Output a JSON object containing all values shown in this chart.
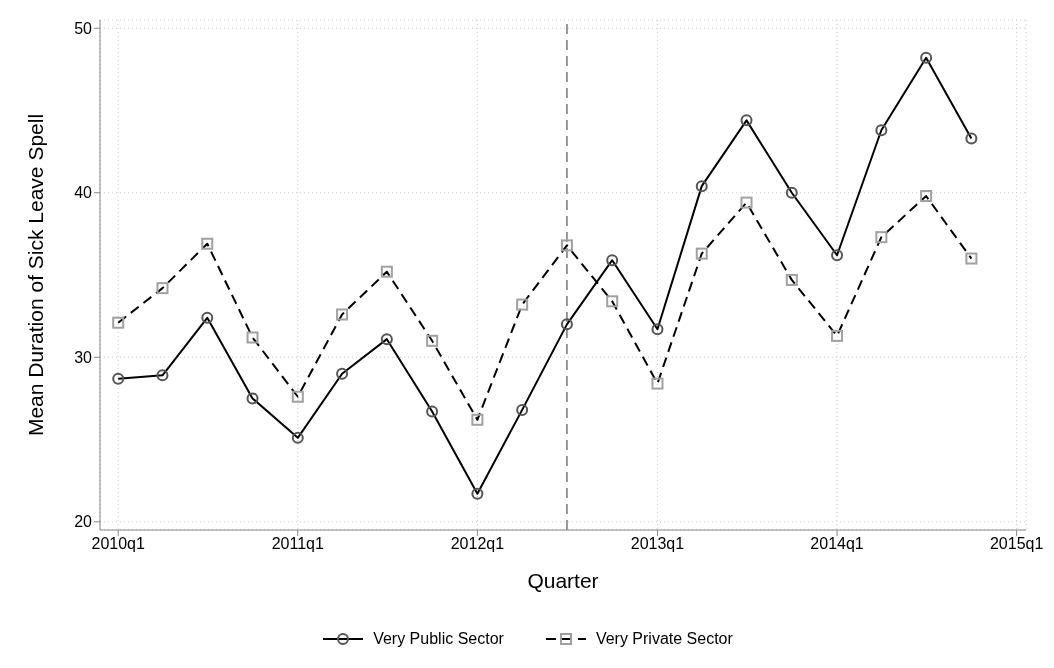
{
  "chart_data": {
    "type": "line",
    "xlabel": "Quarter",
    "ylabel": "Mean Duration of Sick Leave Spell",
    "x": [
      "2010-01",
      "2010-04",
      "2010-07",
      "2010-10",
      "2011-01",
      "2011-04",
      "2011-07",
      "2011-10",
      "2012-01",
      "2012-04",
      "2012-07",
      "2012-10",
      "2013-01",
      "2013-04",
      "2013-07",
      "2013-10",
      "2014-01",
      "2014-04",
      "2014-07",
      "2014-10"
    ],
    "series": [
      {
        "name": "Very Public Sector",
        "color": "#000000",
        "marker": "circle",
        "line_style": "solid",
        "values": [
          28.7,
          28.9,
          32.4,
          27.5,
          25.1,
          29.0,
          31.1,
          26.7,
          21.7,
          26.8,
          32.0,
          35.9,
          31.7,
          40.4,
          44.4,
          40.0,
          36.2,
          43.8,
          48.2,
          43.3
        ]
      },
      {
        "name": "Very Private Sector",
        "color": "#000000",
        "marker": "square",
        "line_style": "dashed",
        "values": [
          32.1,
          34.2,
          36.9,
          31.2,
          27.6,
          32.6,
          35.2,
          31.0,
          26.2,
          33.2,
          36.8,
          33.4,
          28.4,
          36.3,
          39.4,
          34.7,
          31.3,
          37.3,
          39.8,
          36.0
        ]
      }
    ],
    "xlim": [
      "2009-11-25",
      "2015-01-20"
    ],
    "xticks": [
      {
        "value": "2010-01",
        "label": "2010q1"
      },
      {
        "value": "2011-01",
        "label": "2011q1"
      },
      {
        "value": "2012-01",
        "label": "2012q1"
      },
      {
        "value": "2013-01",
        "label": "2013q1"
      },
      {
        "value": "2014-01",
        "label": "2014q1"
      },
      {
        "value": "2015-01",
        "label": "2015q1"
      }
    ],
    "ylim": [
      19.5,
      50.5
    ],
    "yticks": [
      20,
      30,
      40,
      50
    ],
    "ref_lines": [
      {
        "axis": "x",
        "value": "2012-07",
        "color": "#777777",
        "line_style": "dashed"
      }
    ],
    "grid": true,
    "legend": "bottom"
  }
}
